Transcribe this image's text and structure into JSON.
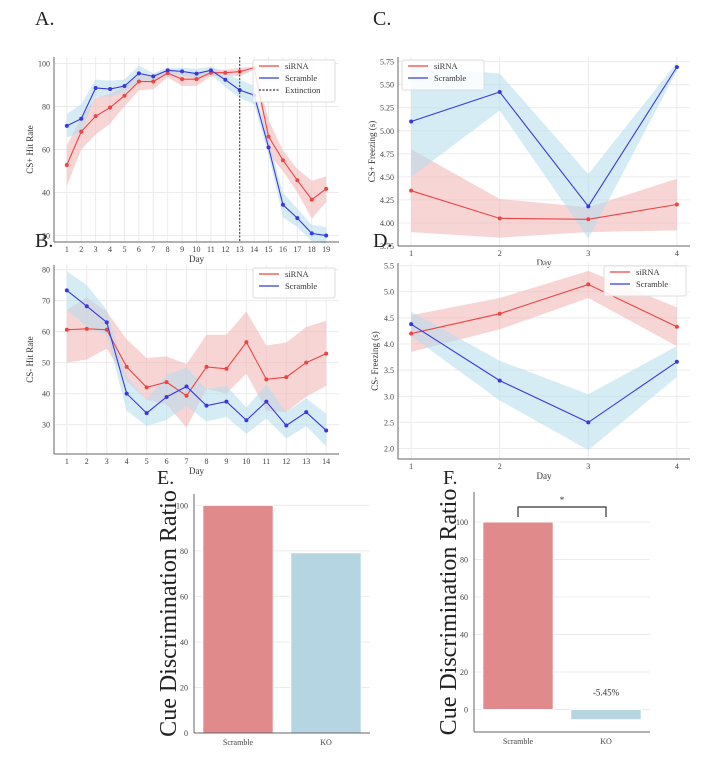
{
  "colors": {
    "sirna": "#ee4444",
    "scramble": "#3838e0",
    "sirna_band": "#f3b3b3",
    "scramble_band": "#b3dcec",
    "bar_scramble": "#e08a8c",
    "bar_ko": "#b4d5e1",
    "extinction": "#333333"
  },
  "chart_data": [
    {
      "id": "A",
      "panel_label": "A.",
      "type": "line",
      "xlabel": "Day",
      "ylabel": "CS+ Hit Rate",
      "x": [
        1,
        2,
        3,
        4,
        5,
        6,
        7,
        8,
        9,
        10,
        11,
        12,
        13,
        14,
        15,
        16,
        17,
        18,
        19
      ],
      "ylim": [
        17,
        103
      ],
      "yticks": [
        20,
        40,
        60,
        80,
        100
      ],
      "grid": true,
      "legend": {
        "placement": "top-right",
        "entries": [
          "siRNA",
          "Scramble",
          "Extinction"
        ]
      },
      "vline": {
        "x": 13,
        "label": "Extinction"
      },
      "series": [
        {
          "name": "siRNA",
          "values": [
            52.8,
            68.3,
            75.5,
            79.5,
            85.0,
            91.6,
            91.6,
            95.5,
            92.7,
            92.7,
            95.7,
            95.7,
            96.2,
            98.0,
            66.0,
            55.0,
            45.7,
            36.7,
            41.7
          ],
          "lower": [
            43,
            60,
            67,
            72,
            80,
            87.5,
            88,
            93.5,
            89.5,
            89.5,
            94,
            94.5,
            94,
            97,
            58,
            50,
            40,
            28,
            35.5
          ],
          "upper": [
            62,
            75,
            84,
            86,
            89.5,
            95,
            94.5,
            97.5,
            95.5,
            95.5,
            97.5,
            97,
            98,
            98.5,
            74,
            59.5,
            51,
            45.5,
            47.5
          ]
        },
        {
          "name": "Scramble",
          "values": [
            71.0,
            74.3,
            88.6,
            88.1,
            89.5,
            95.4,
            94.0,
            96.8,
            96.3,
            95.3,
            96.8,
            92.4,
            87.6,
            85.3,
            61.0,
            34.3,
            28.1,
            21.0,
            20.0
          ],
          "lower": [
            65.5,
            68,
            84.5,
            84.5,
            86.5,
            92,
            92,
            95,
            94.5,
            93,
            95,
            89,
            84,
            81,
            57.5,
            28.5,
            24,
            17.5,
            16
          ],
          "upper": [
            76.5,
            81,
            92.5,
            92,
            92.5,
            99,
            95.5,
            98,
            98,
            97.5,
            98.5,
            95.5,
            92.5,
            89.5,
            64.5,
            40,
            32.5,
            25,
            24
          ]
        }
      ]
    },
    {
      "id": "B",
      "panel_label": "B.",
      "type": "line",
      "xlabel": "Day",
      "ylabel": "CS- Hit Rate",
      "x": [
        1,
        2,
        3,
        4,
        5,
        6,
        7,
        8,
        9,
        10,
        11,
        12,
        13,
        14
      ],
      "ylim": [
        20.5,
        81.5
      ],
      "yticks": [
        30,
        40,
        50,
        60,
        70,
        80
      ],
      "grid": true,
      "legend": {
        "placement": "top-right",
        "entries": [
          "siRNA",
          "Scramble"
        ]
      },
      "series": [
        {
          "name": "siRNA",
          "values": [
            60.6,
            60.9,
            60.6,
            48.6,
            42.0,
            43.7,
            39.3,
            48.6,
            48.0,
            56.6,
            44.6,
            45.3,
            50.0,
            52.9
          ],
          "lower": [
            50,
            51,
            54.5,
            44,
            38,
            36.5,
            29,
            41.5,
            40,
            46.5,
            34.5,
            34,
            39,
            42.5
          ],
          "upper": [
            67,
            71,
            66.5,
            57.5,
            51.5,
            52,
            49.5,
            59,
            59,
            66.5,
            55.5,
            56.5,
            61.5,
            63.5
          ]
        },
        {
          "name": "Scramble",
          "values": [
            73.3,
            68.2,
            63.0,
            40.0,
            33.7,
            38.9,
            42.3,
            36.1,
            37.4,
            31.4,
            37.4,
            29.7,
            34.0,
            28.1
          ],
          "lower": [
            67,
            61.5,
            59,
            34.5,
            29.5,
            31.5,
            36,
            31,
            32.5,
            27,
            32,
            25.5,
            29.5,
            23
          ],
          "upper": [
            79.5,
            75,
            67,
            45.5,
            38,
            46,
            48.5,
            41.5,
            42.5,
            35.5,
            43,
            34,
            38.5,
            33.5
          ]
        }
      ]
    },
    {
      "id": "C",
      "panel_label": "C.",
      "type": "line",
      "xlabel": "Day",
      "ylabel": "CS+ Freezing (s)",
      "x": [
        1,
        2,
        3,
        4
      ],
      "ylim": [
        3.75,
        5.8
      ],
      "yticks": [
        3.75,
        4.0,
        4.25,
        4.5,
        4.75,
        5.0,
        5.25,
        5.5,
        5.75
      ],
      "grid": true,
      "legend": {
        "placement": "top-left",
        "entries": [
          "siRNA",
          "Scramble"
        ]
      },
      "series": [
        {
          "name": "siRNA",
          "values": [
            4.35,
            4.05,
            4.04,
            4.2
          ],
          "lower": [
            3.9,
            3.84,
            3.9,
            3.92
          ],
          "upper": [
            4.8,
            4.26,
            4.17,
            4.48
          ]
        },
        {
          "name": "Scramble",
          "values": [
            5.1,
            5.42,
            4.18,
            5.69
          ],
          "lower": [
            4.5,
            5.22,
            3.83,
            5.65
          ],
          "upper": [
            5.7,
            5.62,
            4.53,
            5.74
          ]
        }
      ]
    },
    {
      "id": "D",
      "panel_label": "D.",
      "type": "line",
      "xlabel": "Day",
      "ylabel": "CS- Freezing (s)",
      "x": [
        1,
        2,
        3,
        4
      ],
      "ylim": [
        1.8,
        5.55
      ],
      "yticks": [
        2.0,
        2.5,
        3.0,
        3.5,
        4.0,
        4.5,
        5.0,
        5.5
      ],
      "grid": true,
      "legend": {
        "placement": "top-right",
        "entries": [
          "siRNA",
          "Scramble"
        ]
      },
      "series": [
        {
          "name": "siRNA",
          "values": [
            4.2,
            4.58,
            5.14,
            4.33
          ],
          "lower": [
            3.85,
            4.28,
            4.88,
            3.96
          ],
          "upper": [
            4.55,
            4.88,
            5.4,
            4.7
          ]
        },
        {
          "name": "Scramble",
          "values": [
            4.38,
            3.3,
            2.5,
            3.66
          ],
          "lower": [
            4.15,
            2.92,
            1.97,
            3.37
          ],
          "upper": [
            4.62,
            3.68,
            3.04,
            3.96
          ]
        }
      ]
    },
    {
      "id": "E",
      "panel_label": "E.",
      "type": "bar",
      "xlabel": "",
      "ylabel": "Cue Discrimination Ratio",
      "categories": [
        "Scramble",
        "KO"
      ],
      "values": [
        100,
        79.2
      ],
      "ylim": [
        0,
        105
      ],
      "yticks": [
        0,
        20,
        40,
        60,
        80,
        100
      ],
      "grid": true
    },
    {
      "id": "F",
      "panel_label": "F.",
      "type": "bar",
      "xlabel": "",
      "ylabel": "Cue Discrimination Ratio",
      "categories": [
        "Scramble",
        "KO"
      ],
      "values": [
        100,
        -5.45
      ],
      "ylim": [
        -12,
        116
      ],
      "yticks": [
        0,
        20,
        40,
        60,
        80,
        100
      ],
      "grid": true,
      "data_labels": [
        "",
        "-5.45%"
      ],
      "significance": {
        "between": [
          "Scramble",
          "KO"
        ],
        "label": "*"
      }
    }
  ]
}
